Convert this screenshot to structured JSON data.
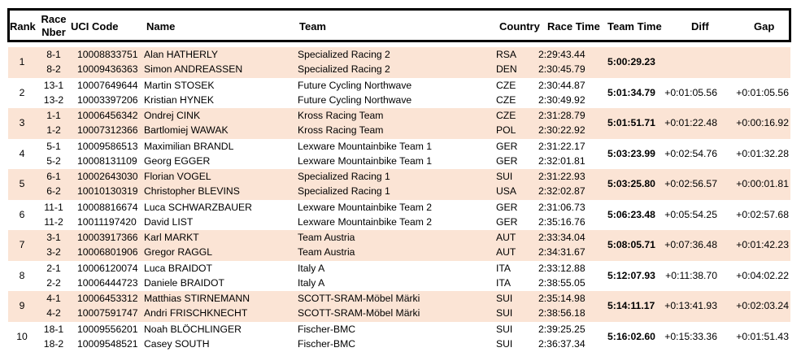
{
  "headers": {
    "rank": "Rank",
    "race_nber_1": "Race",
    "race_nber_2": "Nber",
    "uci_code": "UCI Code",
    "name": "Name",
    "team": "Team",
    "country": "Country",
    "race_time": "Race Time",
    "team_time": "Team Time",
    "diff": "Diff",
    "gap": "Gap"
  },
  "groups": [
    {
      "rank": "1",
      "team_time": "5:00:29.23",
      "diff": "",
      "gap": "",
      "riders": [
        {
          "nber": "8-1",
          "uci": "10008833751",
          "name": "Alan HATHERLY",
          "team": "Specialized Racing 2",
          "country": "RSA",
          "time": "2:29:43.44"
        },
        {
          "nber": "8-2",
          "uci": "10009436363",
          "name": "Simon ANDREASSEN",
          "team": "Specialized Racing 2",
          "country": "DEN",
          "time": "2:30:45.79"
        }
      ]
    },
    {
      "rank": "2",
      "team_time": "5:01:34.79",
      "diff": "+0:01:05.56",
      "gap": "+0:01:05.56",
      "riders": [
        {
          "nber": "13-1",
          "uci": "10007649644",
          "name": "Martin STOSEK",
          "team": "Future Cycling Northwave",
          "country": "CZE",
          "time": "2:30:44.87"
        },
        {
          "nber": "13-2",
          "uci": "10003397206",
          "name": "Kristian HYNEK",
          "team": "Future Cycling Northwave",
          "country": "CZE",
          "time": "2:30:49.92"
        }
      ]
    },
    {
      "rank": "3",
      "team_time": "5:01:51.71",
      "diff": "+0:01:22.48",
      "gap": "+0:00:16.92",
      "riders": [
        {
          "nber": "1-1",
          "uci": "10006456342",
          "name": "Ondrej CINK",
          "team": "Kross Racing Team",
          "country": "CZE",
          "time": "2:31:28.79"
        },
        {
          "nber": "1-2",
          "uci": "10007312366",
          "name": "Bartlomiej WAWAK",
          "team": "Kross Racing Team",
          "country": "POL",
          "time": "2:30:22.92"
        }
      ]
    },
    {
      "rank": "4",
      "team_time": "5:03:23.99",
      "diff": "+0:02:54.76",
      "gap": "+0:01:32.28",
      "riders": [
        {
          "nber": "5-1",
          "uci": "10009586513",
          "name": "Maximilian BRANDL",
          "team": "Lexware Mountainbike Team  1",
          "country": "GER",
          "time": "2:31:22.17"
        },
        {
          "nber": "5-2",
          "uci": "10008131109",
          "name": "Georg EGGER",
          "team": "Lexware Mountainbike Team  1",
          "country": "GER",
          "time": "2:32:01.81"
        }
      ]
    },
    {
      "rank": "5",
      "team_time": "5:03:25.80",
      "diff": "+0:02:56.57",
      "gap": "+0:00:01.81",
      "riders": [
        {
          "nber": "6-1",
          "uci": "10002643030",
          "name": "Florian VOGEL",
          "team": "Specialized Racing 1",
          "country": "SUI",
          "time": "2:31:22.93"
        },
        {
          "nber": "6-2",
          "uci": "10010130319",
          "name": "Christopher BLEVINS",
          "team": "Specialized Racing 1",
          "country": "USA",
          "time": "2:32:02.87"
        }
      ]
    },
    {
      "rank": "6",
      "team_time": "5:06:23.48",
      "diff": "+0:05:54.25",
      "gap": "+0:02:57.68",
      "riders": [
        {
          "nber": "11-1",
          "uci": "10008816674",
          "name": "Luca SCHWARZBAUER",
          "team": "Lexware Mountainbike Team  2",
          "country": "GER",
          "time": "2:31:06.73"
        },
        {
          "nber": "11-2",
          "uci": "10011197420",
          "name": "David LIST",
          "team": "Lexware Mountainbike Team  2",
          "country": "GER",
          "time": "2:35:16.76"
        }
      ]
    },
    {
      "rank": "7",
      "team_time": "5:08:05.71",
      "diff": "+0:07:36.48",
      "gap": "+0:01:42.23",
      "riders": [
        {
          "nber": "3-1",
          "uci": "10003917366",
          "name": "Karl MARKT",
          "team": "Team Austria",
          "country": "AUT",
          "time": "2:33:34.04"
        },
        {
          "nber": "3-2",
          "uci": "10006801906",
          "name": "Gregor RAGGL",
          "team": "Team Austria",
          "country": "AUT",
          "time": "2:34:31.67"
        }
      ]
    },
    {
      "rank": "8",
      "team_time": "5:12:07.93",
      "diff": "+0:11:38.70",
      "gap": "+0:04:02.22",
      "riders": [
        {
          "nber": "2-1",
          "uci": "10006120074",
          "name": "Luca BRAIDOT",
          "team": "Italy A",
          "country": "ITA",
          "time": "2:33:12.88"
        },
        {
          "nber": "2-2",
          "uci": "10006444723",
          "name": "Daniele BRAIDOT",
          "team": "Italy A",
          "country": "ITA",
          "time": "2:38:55.05"
        }
      ]
    },
    {
      "rank": "9",
      "team_time": "5:14:11.17",
      "diff": "+0:13:41.93",
      "gap": "+0:02:03.24",
      "riders": [
        {
          "nber": "4-1",
          "uci": "10006453312",
          "name": "Matthias STIRNEMANN",
          "team": "SCOTT-SRAM-Möbel Märki",
          "country": "SUI",
          "time": "2:35:14.98"
        },
        {
          "nber": "4-2",
          "uci": "10007591747",
          "name": "Andri FRISCHKNECHT",
          "team": "SCOTT-SRAM-Möbel Märki",
          "country": "SUI",
          "time": "2:38:56.18"
        }
      ]
    },
    {
      "rank": "10",
      "team_time": "5:16:02.60",
      "diff": "+0:15:33.36",
      "gap": "+0:01:51.43",
      "riders": [
        {
          "nber": "18-1",
          "uci": "10009556201",
          "name": "Noah BLÖCHLINGER",
          "team": "Fischer-BMC",
          "country": "SUI",
          "time": "2:39:25.25"
        },
        {
          "nber": "18-2",
          "uci": "10009548521",
          "name": "Casey SOUTH",
          "team": "Fischer-BMC",
          "country": "SUI",
          "time": "2:36:37.34"
        }
      ]
    }
  ]
}
